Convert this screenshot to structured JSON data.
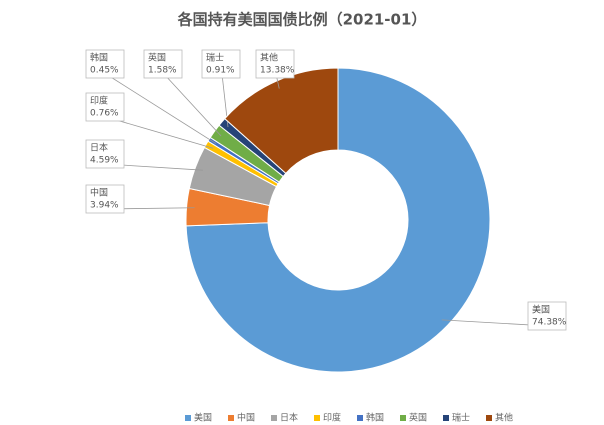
{
  "chart_data": {
    "type": "donut",
    "title": "各国持有美国国债比例（2021-01）",
    "categories": [
      "美国",
      "中国",
      "日本",
      "印度",
      "韩国",
      "英国",
      "瑞士",
      "其他"
    ],
    "values": [
      74.38,
      3.94,
      4.59,
      0.76,
      0.45,
      1.58,
      0.91,
      13.38
    ],
    "value_labels": [
      "74.38%",
      "3.94%",
      "4.59%",
      "0.76%",
      "0.45%",
      "1.58%",
      "0.91%",
      "13.38%"
    ],
    "colors": [
      "#5b9bd5",
      "#ed7d31",
      "#a5a5a5",
      "#ffc000",
      "#4472c4",
      "#70ad47",
      "#264478",
      "#9e480e"
    ],
    "legend": "bottom"
  }
}
